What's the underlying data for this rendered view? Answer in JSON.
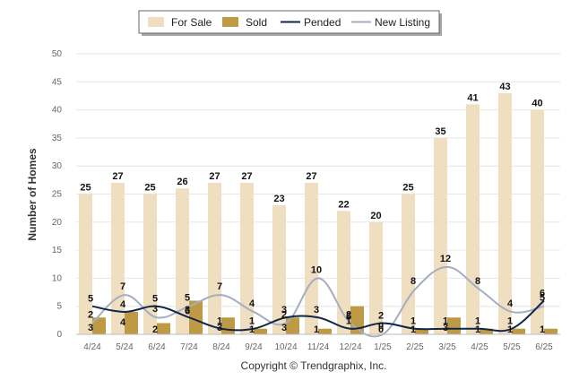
{
  "chart_data": {
    "type": "bar",
    "categories": [
      "4/24",
      "5/24",
      "6/24",
      "7/24",
      "8/24",
      "9/24",
      "10/24",
      "11/24",
      "12/24",
      "1/25",
      "2/25",
      "3/25",
      "4/25",
      "5/25",
      "6/25"
    ],
    "series": [
      {
        "name": "For Sale",
        "kind": "bar",
        "color": "#efdfc0",
        "values": [
          25,
          27,
          25,
          26,
          27,
          27,
          23,
          27,
          22,
          20,
          25,
          35,
          41,
          43,
          40
        ]
      },
      {
        "name": "Sold",
        "kind": "bar",
        "color": "#bf9a45",
        "values": [
          3,
          4,
          2,
          6,
          3,
          1,
          3,
          1,
          5,
          0,
          1,
          3,
          1,
          1,
          1
        ]
      },
      {
        "name": "Pended",
        "kind": "line",
        "color": "#0f2648",
        "values": [
          5,
          4,
          5,
          3,
          1,
          1,
          3,
          3,
          1,
          2,
          1,
          1,
          1,
          1,
          6
        ]
      },
      {
        "name": "New Listing",
        "kind": "line",
        "color": "#a5adc2",
        "values": [
          2,
          7,
          3,
          5,
          7,
          4,
          2,
          10,
          2,
          0,
          8,
          12,
          8,
          4,
          5
        ]
      }
    ],
    "ylabel": "Number of Homes",
    "ylim": [
      0,
      50
    ],
    "yticks": [
      0,
      5,
      10,
      15,
      20,
      25,
      30,
      35,
      40,
      45,
      50
    ],
    "grid": true,
    "legend_position": "top-center",
    "credit": "Copyright © Trendgraphix, Inc."
  }
}
